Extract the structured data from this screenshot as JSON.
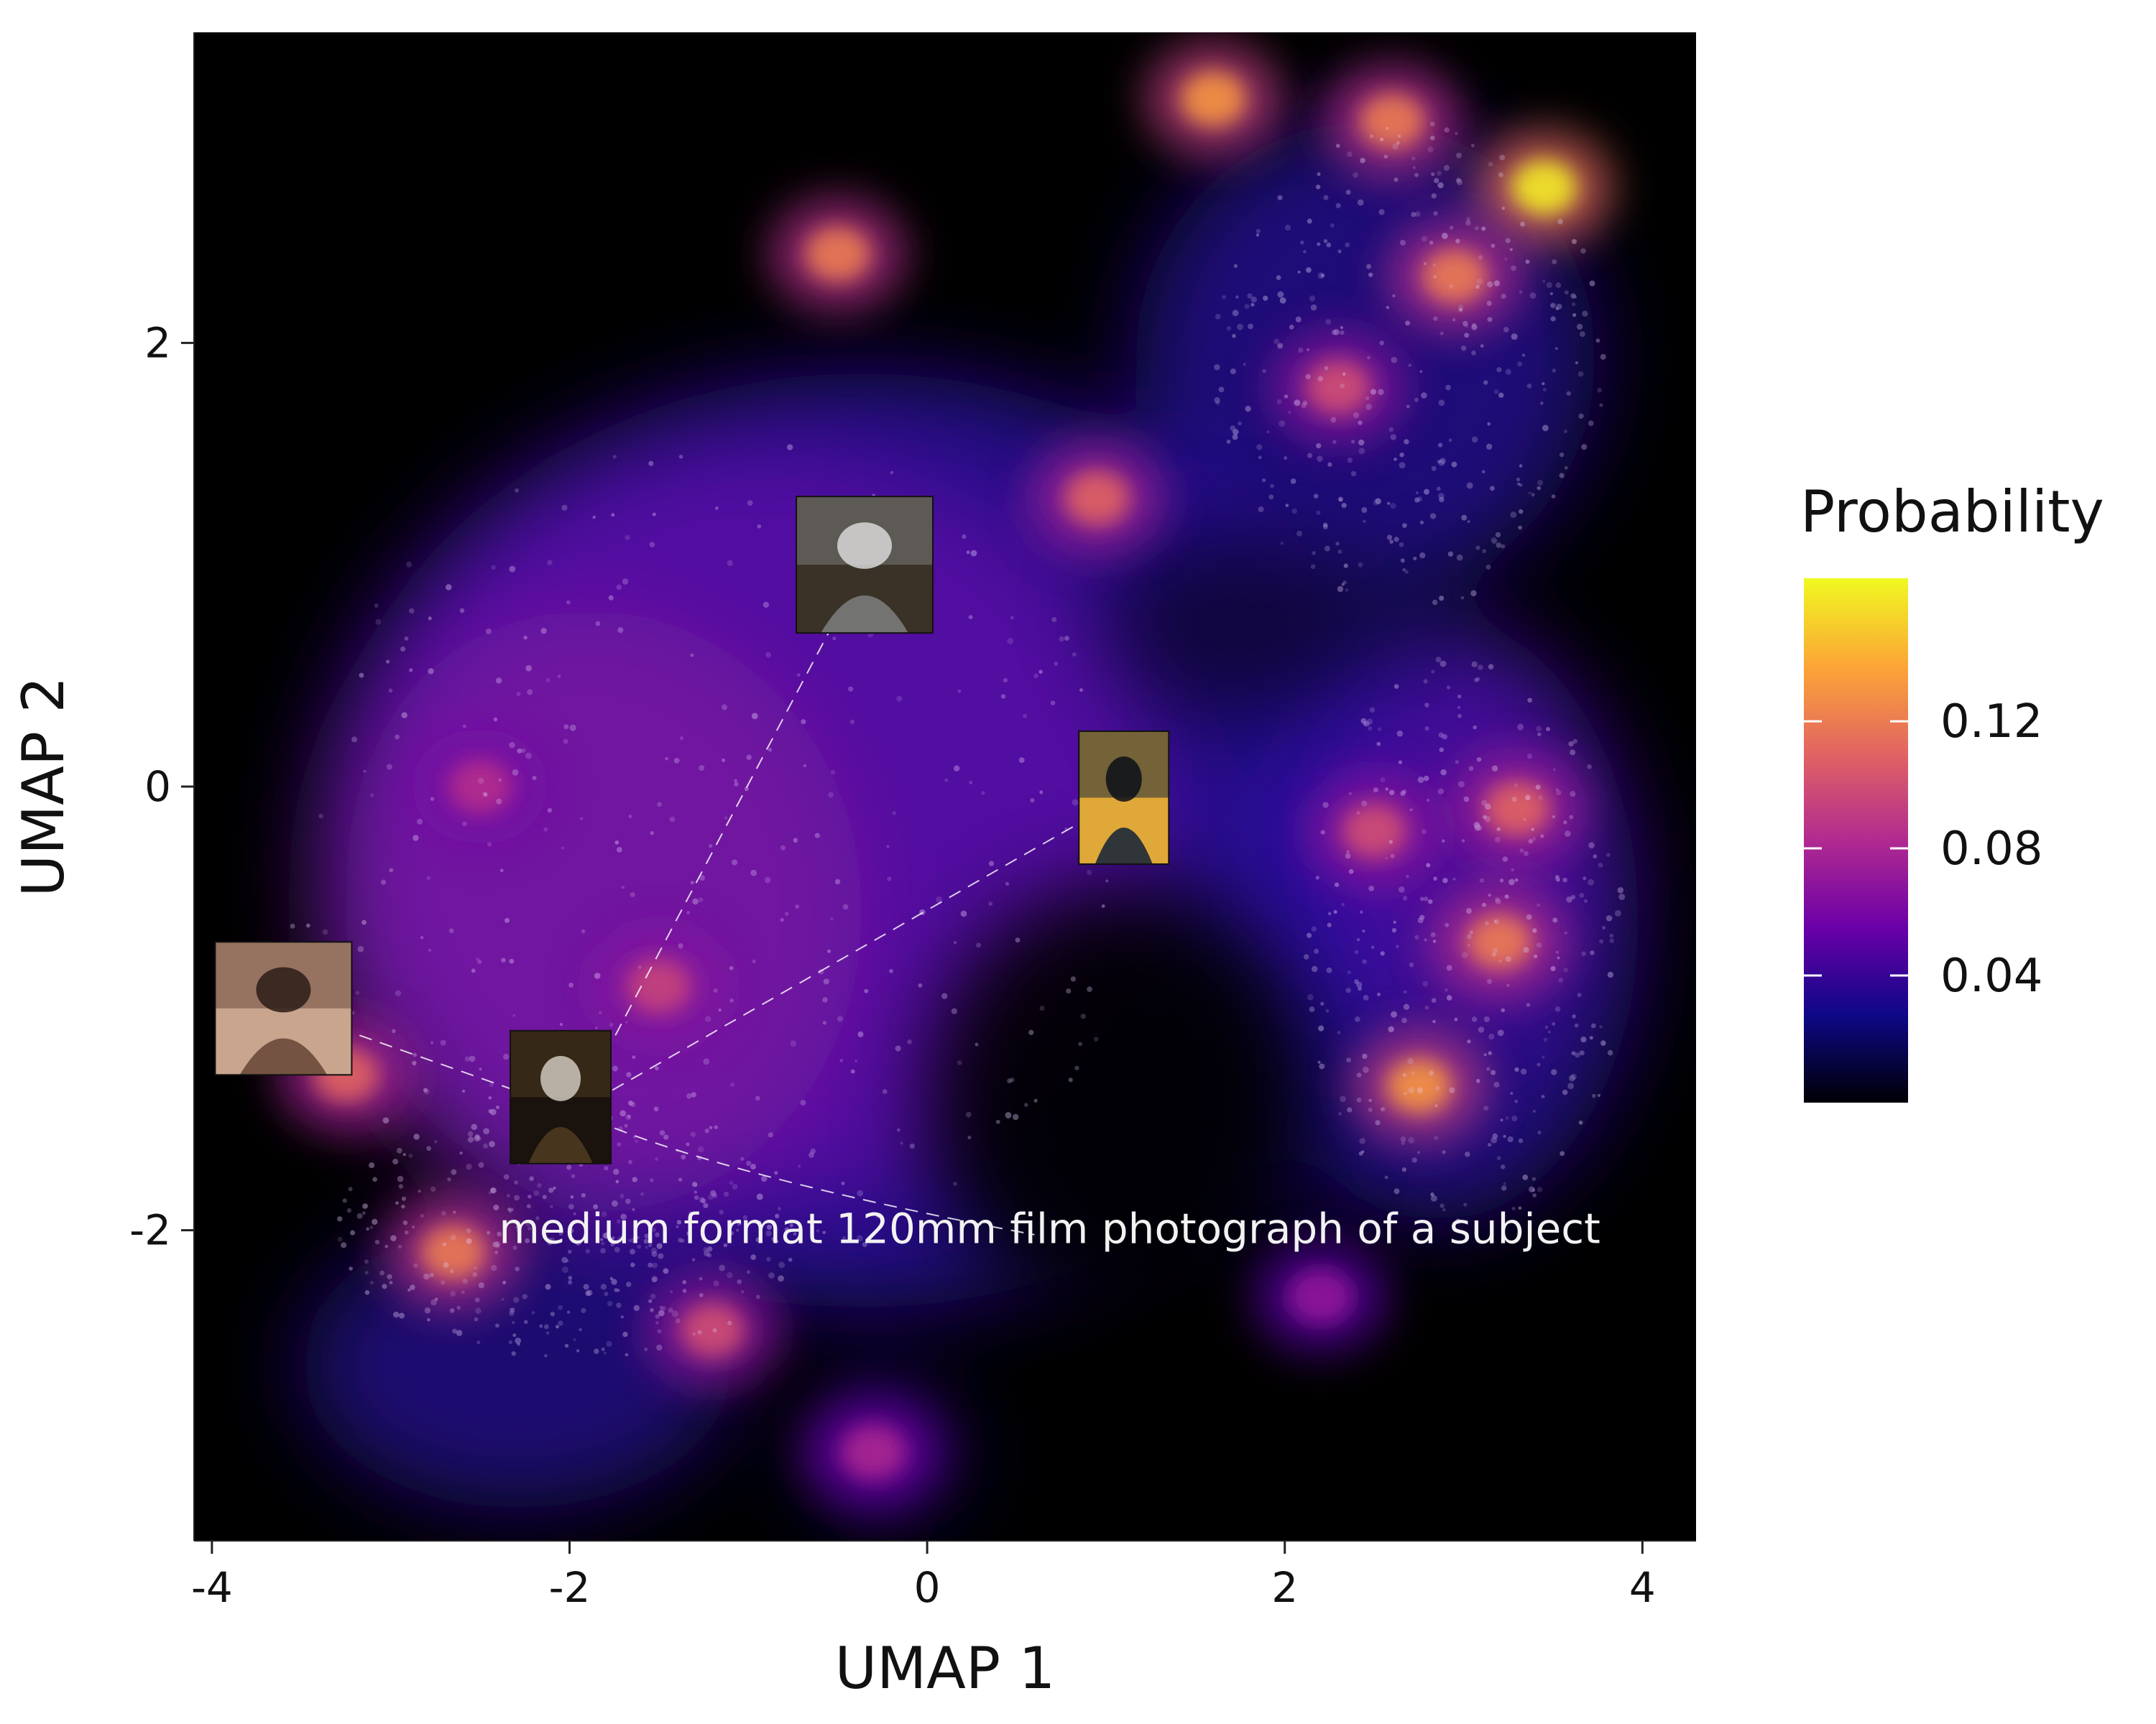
{
  "chart_data": {
    "type": "heatmap",
    "xlabel": "UMAP 1",
    "ylabel": "UMAP 2",
    "xlim": [
      -4.1,
      4.3
    ],
    "ylim": [
      -3.4,
      3.4
    ],
    "xticks": [
      -4,
      -2,
      0,
      2,
      4
    ],
    "yticks": [
      -2,
      0,
      2
    ],
    "xtick_labels": [
      "-4",
      "-2",
      "0",
      "2",
      "4"
    ],
    "ytick_labels": [
      "-2",
      "0",
      "2"
    ],
    "grid": false,
    "background_color": "#000000",
    "colorbar": {
      "title": "Probability",
      "range": [
        0.0,
        0.165
      ],
      "ticks": [
        0.04,
        0.08,
        0.12
      ],
      "tick_labels": [
        "0.04",
        "0.08",
        "0.12"
      ],
      "colormap": [
        "#000004",
        "#0d0887",
        "#6a00a8",
        "#b12a90",
        "#e16462",
        "#fca636",
        "#f0f921"
      ],
      "placement": "right"
    },
    "annotation": {
      "text": "medium format 120mm film photograph of a subject",
      "x": 0.6,
      "y": -2.0
    },
    "image_markers": [
      {
        "name": "center-portrait",
        "x": -2.05,
        "y": -1.4,
        "anchor": true,
        "colors": [
          "#4e3a20",
          "#1a120c",
          "#cfc8be"
        ]
      },
      {
        "name": "woman-portrait",
        "x": -3.6,
        "y": -1.0,
        "colors": [
          "#6b4a3a",
          "#c9a58e",
          "#2b1c18"
        ]
      },
      {
        "name": "armored-figure",
        "x": -0.35,
        "y": 1.0,
        "colors": [
          "#7a7a7a",
          "#3a3226",
          "#d8d8d8"
        ]
      },
      {
        "name": "dark-creature",
        "x": 1.1,
        "y": -0.05,
        "colors": [
          "#1c2838",
          "#e0a838",
          "#0a0f18"
        ]
      }
    ],
    "density_peaks": [
      {
        "x": -1.5,
        "y": -0.9,
        "level": 0.095
      },
      {
        "x": -2.5,
        "y": 0.0,
        "level": 0.085
      },
      {
        "x": 0.95,
        "y": 1.3,
        "level": 0.11
      },
      {
        "x": -0.5,
        "y": 2.4,
        "level": 0.12
      },
      {
        "x": 1.6,
        "y": 3.1,
        "level": 0.13
      },
      {
        "x": 2.6,
        "y": 3.0,
        "level": 0.12
      },
      {
        "x": 3.45,
        "y": 2.7,
        "level": 0.16
      },
      {
        "x": 2.95,
        "y": 2.3,
        "level": 0.12
      },
      {
        "x": 2.3,
        "y": 1.8,
        "level": 0.1
      },
      {
        "x": 3.3,
        "y": -0.1,
        "level": 0.11
      },
      {
        "x": 3.2,
        "y": -0.7,
        "level": 0.12
      },
      {
        "x": 2.75,
        "y": -1.35,
        "level": 0.13
      },
      {
        "x": 2.5,
        "y": -0.2,
        "level": 0.1
      },
      {
        "x": -2.65,
        "y": -2.1,
        "level": 0.12
      },
      {
        "x": -1.2,
        "y": -2.45,
        "level": 0.1
      },
      {
        "x": -3.25,
        "y": -1.3,
        "level": 0.11
      },
      {
        "x": -0.3,
        "y": -3.0,
        "level": 0.08
      },
      {
        "x": 2.2,
        "y": -2.3,
        "level": 0.07
      }
    ]
  }
}
